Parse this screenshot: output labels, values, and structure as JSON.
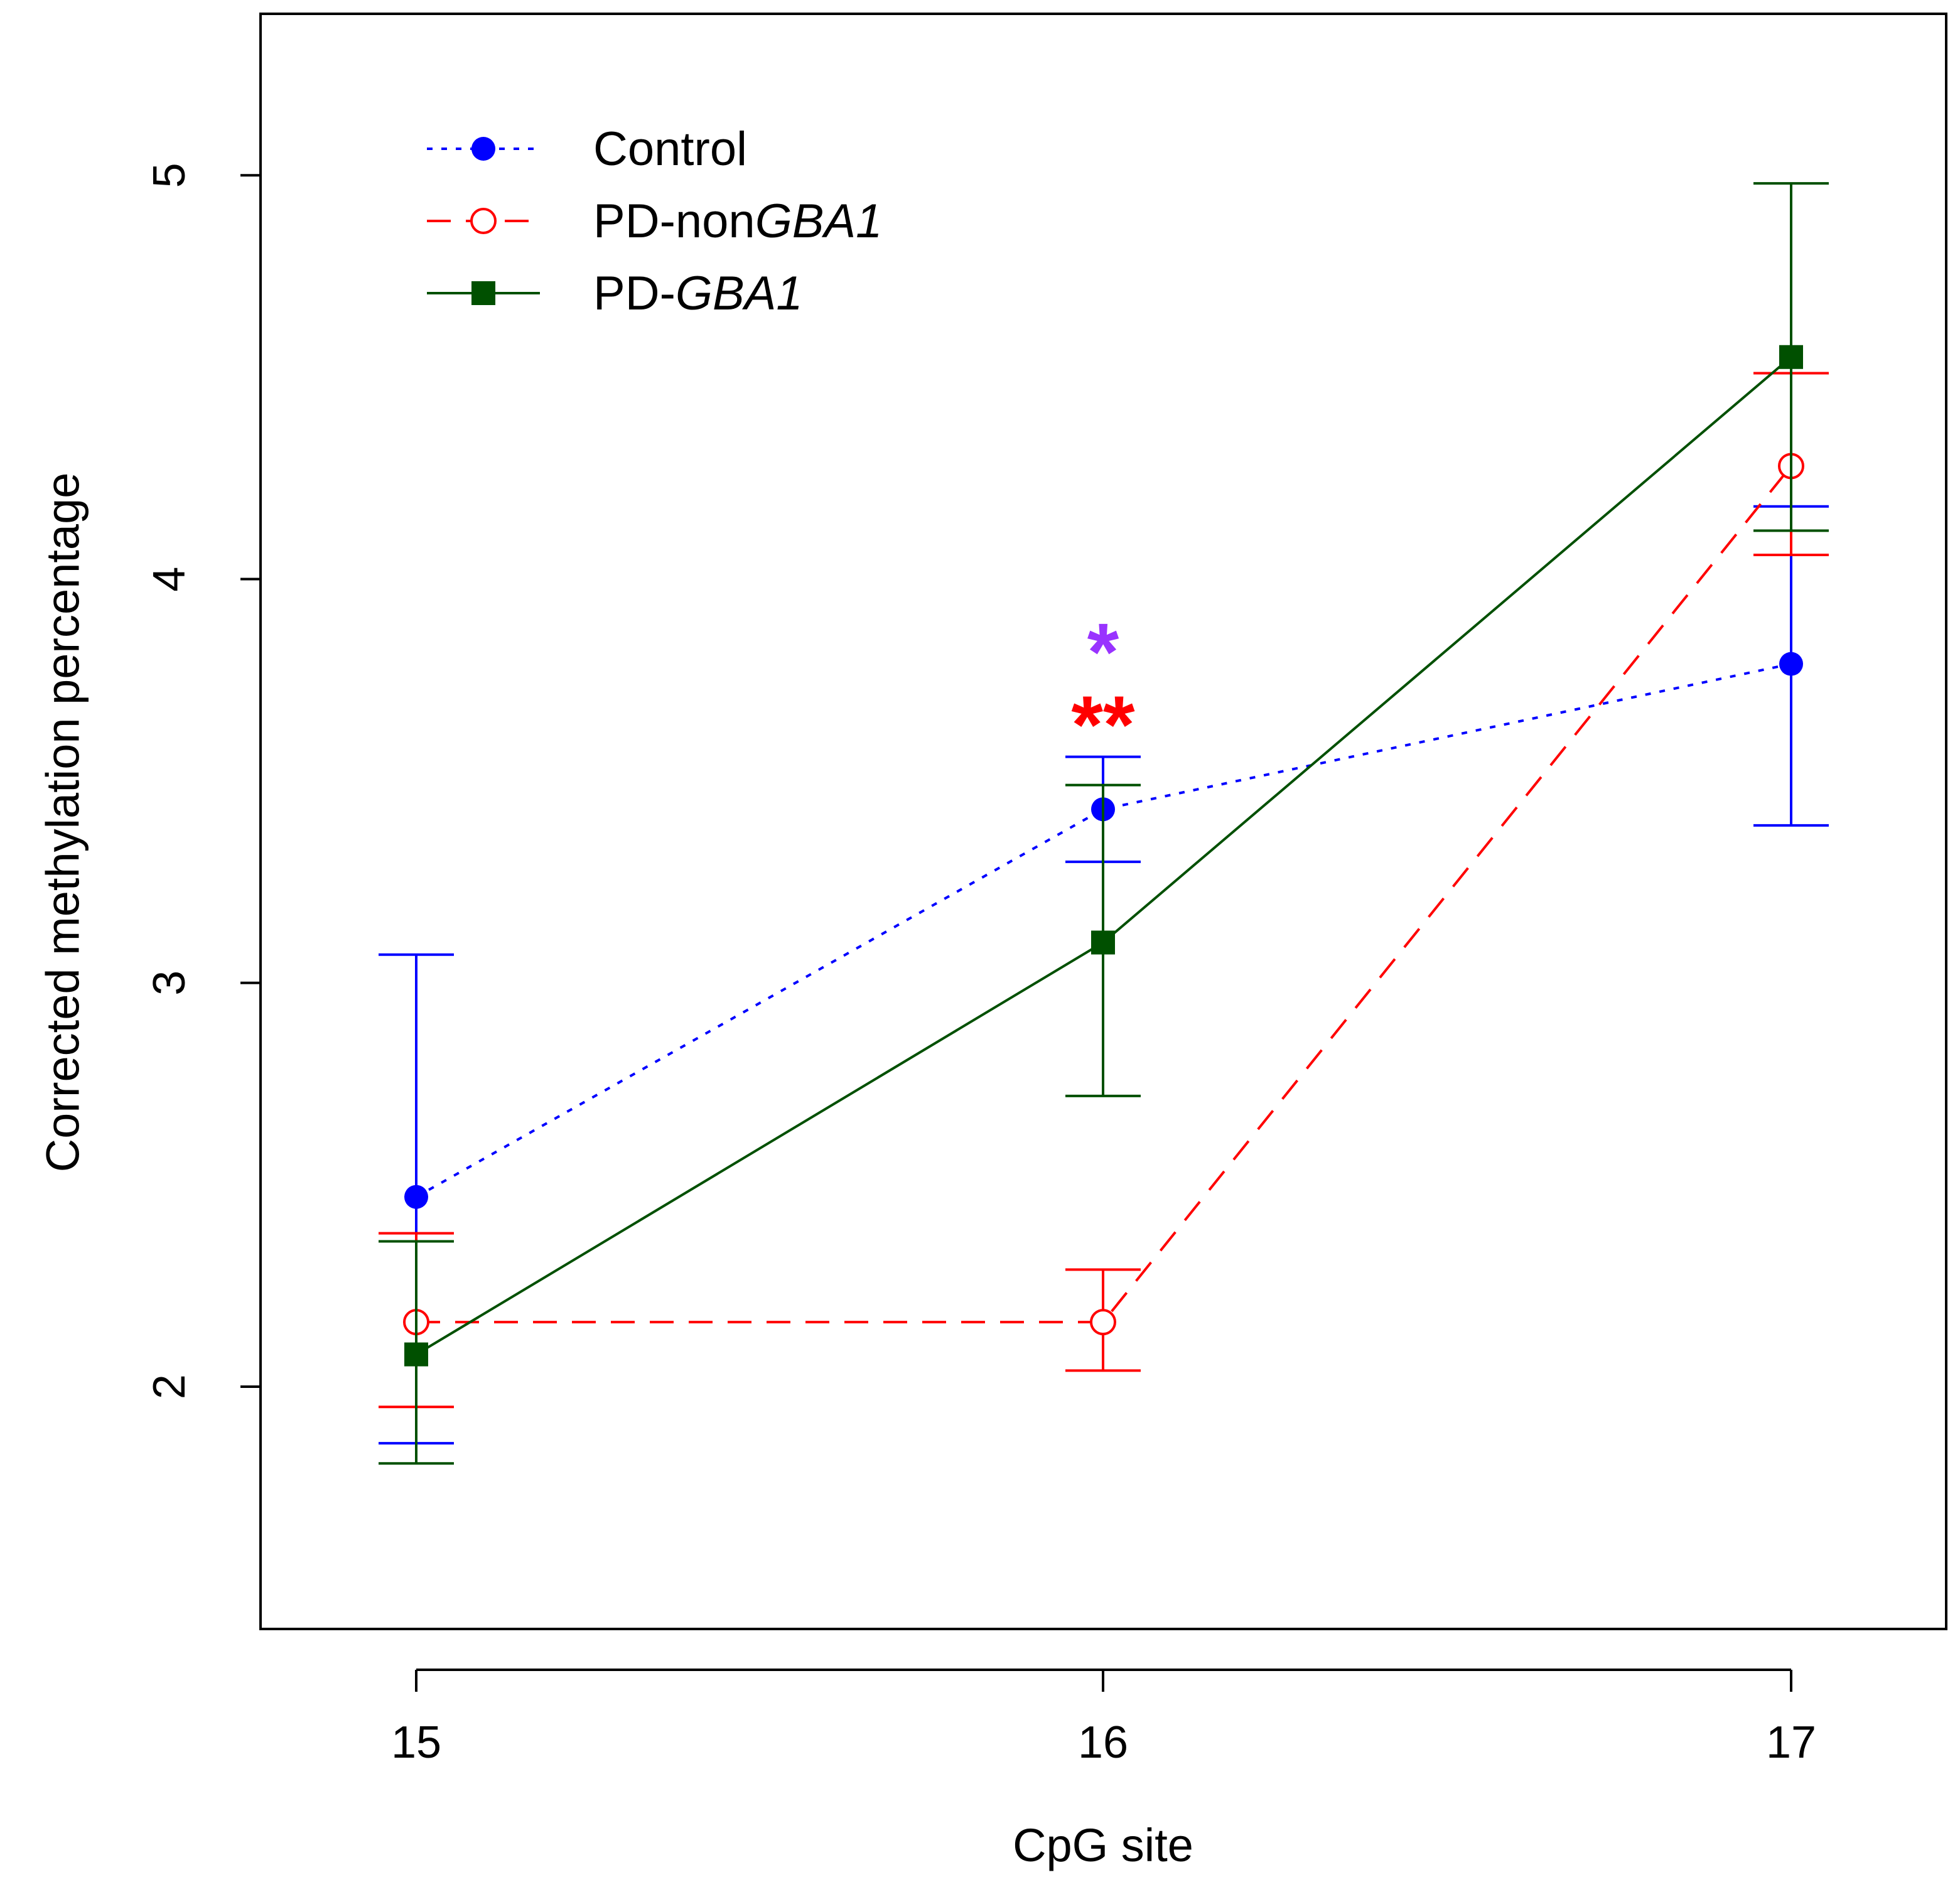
{
  "chart_data": {
    "type": "line",
    "title": "",
    "xlabel": "CpG site",
    "ylabel": "Corrected methylation percentage",
    "categories": [
      "15",
      "16",
      "17"
    ],
    "ylim": [
      1.4,
      5.4
    ],
    "yticks": [
      "2",
      "3",
      "4",
      "5"
    ],
    "grid": false,
    "legend_position": "top-left",
    "series": [
      {
        "key": "control",
        "name": "Control",
        "name_plain": "Control",
        "name_italic": "",
        "color": "#0000ff",
        "line_style": "dotted",
        "marker": "filled-circle",
        "values": [
          2.47,
          3.43,
          3.79
        ],
        "error_low": [
          1.86,
          3.3,
          3.39
        ],
        "error_high": [
          3.07,
          3.56,
          4.18
        ]
      },
      {
        "key": "pd_nongba1",
        "name": "PD-nonGBA1",
        "name_plain": "PD-non",
        "name_italic": "GBA1",
        "color": "#ff0000",
        "line_style": "dashed",
        "marker": "open-circle",
        "values": [
          2.16,
          2.16,
          4.28
        ],
        "error_low": [
          1.95,
          2.04,
          4.06
        ],
        "error_high": [
          2.38,
          2.29,
          4.51
        ]
      },
      {
        "key": "pd_gba1",
        "name": "PD-GBA1",
        "name_plain": "PD-",
        "name_italic": "GBA1",
        "color": "#005000",
        "line_style": "solid",
        "marker": "filled-square",
        "values": [
          2.08,
          3.1,
          4.55
        ],
        "error_low": [
          1.81,
          2.72,
          4.12
        ],
        "error_high": [
          2.36,
          3.49,
          4.98
        ]
      }
    ],
    "annotations": [
      {
        "text": "*",
        "color": "#9933ff",
        "x_category": "16",
        "y": 3.82
      },
      {
        "text": "**",
        "color": "#ff0000",
        "x_category": "16",
        "y": 3.64
      }
    ]
  }
}
